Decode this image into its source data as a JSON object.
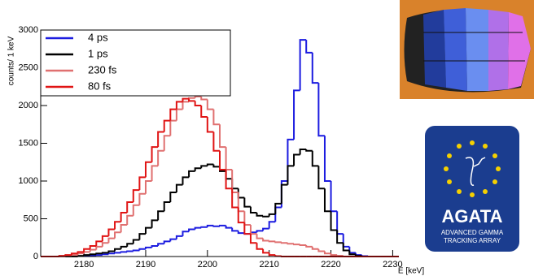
{
  "chart_data": {
    "type": "histogram",
    "y_label": "counts/ 1 keV",
    "x_label": "E [keV]",
    "bins": [
      2173,
      2174,
      2175,
      2176,
      2177,
      2178,
      2179,
      2180,
      2181,
      2182,
      2183,
      2184,
      2185,
      2186,
      2187,
      2188,
      2189,
      2190,
      2191,
      2192,
      2193,
      2194,
      2195,
      2196,
      2197,
      2198,
      2199,
      2200,
      2201,
      2202,
      2203,
      2204,
      2205,
      2206,
      2207,
      2208,
      2209,
      2210,
      2211,
      2212,
      2213,
      2214,
      2215,
      2216,
      2217,
      2218,
      2219,
      2220,
      2221,
      2222,
      2223,
      2224,
      2225,
      2226,
      2227,
      2228,
      2229,
      2230,
      2231
    ],
    "series": [
      {
        "name": "4 ps",
        "color": "#1c1ce0",
        "values": [
          0,
          0,
          0,
          0,
          0,
          0,
          5,
          10,
          15,
          20,
          30,
          40,
          50,
          60,
          70,
          80,
          100,
          120,
          140,
          170,
          200,
          230,
          270,
          330,
          360,
          380,
          390,
          410,
          400,
          410,
          380,
          340,
          310,
          300,
          320,
          340,
          370,
          460,
          650,
          1000,
          1550,
          2200,
          2870,
          2700,
          2300,
          1600,
          1000,
          600,
          300,
          130,
          50,
          20,
          5,
          0,
          0,
          0,
          0,
          0
        ]
      },
      {
        "name": "1 ps",
        "color": "#000000",
        "values": [
          0,
          0,
          0,
          0,
          0,
          0,
          10,
          20,
          30,
          40,
          50,
          70,
          100,
          130,
          170,
          220,
          300,
          380,
          480,
          600,
          720,
          850,
          950,
          1050,
          1130,
          1170,
          1200,
          1220,
          1190,
          1130,
          1030,
          900,
          780,
          660,
          580,
          540,
          530,
          560,
          700,
          950,
          1200,
          1350,
          1420,
          1400,
          1200,
          900,
          600,
          350,
          180,
          80,
          30,
          10,
          0,
          0,
          0,
          0,
          0,
          0
        ]
      },
      {
        "name": "230 fs",
        "color": "#e07070",
        "values": [
          0,
          0,
          0,
          0,
          10,
          20,
          40,
          60,
          90,
          130,
          180,
          240,
          320,
          420,
          540,
          680,
          830,
          1000,
          1200,
          1400,
          1600,
          1800,
          1950,
          2050,
          2100,
          2120,
          2080,
          1950,
          1750,
          1450,
          1150,
          850,
          600,
          420,
          300,
          240,
          210,
          200,
          190,
          180,
          170,
          160,
          150,
          130,
          100,
          70,
          40,
          20,
          10,
          0,
          0,
          0,
          0,
          0,
          0,
          0,
          0,
          0
        ]
      },
      {
        "name": "80 fs",
        "color": "#e01414",
        "values": [
          0,
          0,
          0,
          10,
          20,
          40,
          60,
          100,
          140,
          200,
          270,
          360,
          460,
          580,
          720,
          880,
          1050,
          1250,
          1450,
          1650,
          1800,
          1950,
          2050,
          2090,
          2060,
          2000,
          1850,
          1650,
          1400,
          1150,
          900,
          650,
          450,
          300,
          180,
          100,
          50,
          20,
          5,
          0,
          0,
          0,
          0,
          0,
          0,
          0,
          0,
          0,
          0,
          0,
          0,
          0,
          0,
          0,
          0,
          0,
          0,
          0
        ]
      }
    ],
    "xlim": [
      2173,
      2231
    ],
    "ylim": [
      0,
      3000
    ],
    "xticks": [
      2180,
      2190,
      2200,
      2210,
      2220,
      2230
    ],
    "yticks": [
      0,
      500,
      1000,
      1500,
      2000,
      2500,
      3000
    ],
    "legend": "upper left"
  },
  "logo": {
    "title": "AGATA",
    "line1": "ADVANCED GAMMA",
    "line2": "TRACKING ARRAY"
  }
}
